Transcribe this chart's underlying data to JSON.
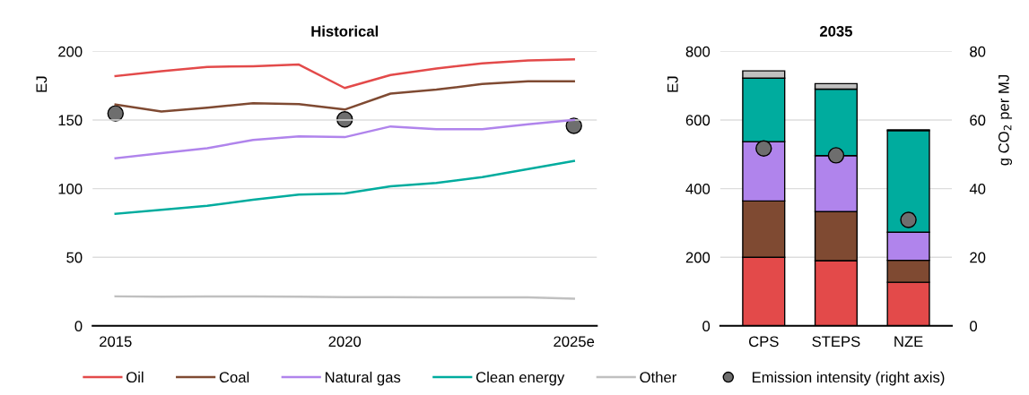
{
  "chart_data": [
    {
      "type": "line",
      "title": "Historical",
      "ylabel": "EJ",
      "x": [
        2015,
        2016,
        2017,
        2018,
        2019,
        2020,
        2021,
        2022,
        2023,
        2024,
        2025
      ],
      "xlim": [
        2014.5,
        2025.5
      ],
      "xticks": [
        2015,
        2020,
        {
          "value": 2025,
          "label": "2025e"
        }
      ],
      "ylim": [
        0,
        200
      ],
      "yticks": [
        0,
        50,
        100,
        150,
        200
      ],
      "y2lim": [
        0,
        80
      ],
      "grid": "y",
      "legend": "bottom",
      "tick_labels": [
        "x",
        "y"
      ],
      "series": [
        {
          "name": "Oil",
          "color": "#e34a4a",
          "values": [
            182,
            185.5,
            188.7,
            189.2,
            190.4,
            173.3,
            182.8,
            187.5,
            191.3,
            193.3,
            194.2
          ]
        },
        {
          "name": "Coal",
          "color": "#7f4a32",
          "values": [
            161.3,
            156.1,
            159,
            162.2,
            161.6,
            157.6,
            169.2,
            172.1,
            176.2,
            178.2,
            178.2
          ]
        },
        {
          "name": "Natural gas",
          "color": "#b084ec",
          "values": [
            122.1,
            125.9,
            129.4,
            135.5,
            138.1,
            137.5,
            145.3,
            143.3,
            143.3,
            146.8,
            150
          ]
        },
        {
          "name": "Clean energy",
          "color": "#00ac9e",
          "values": [
            81.7,
            84.6,
            87.5,
            91.9,
            95.6,
            96.5,
            101.7,
            104.1,
            108.4,
            114.2,
            120.1
          ]
        },
        {
          "name": "Other",
          "color": "#c0c0c0",
          "values": [
            21.5,
            21.3,
            21.5,
            21.5,
            21.2,
            21,
            20.9,
            20.8,
            20.7,
            20.7,
            19.8
          ]
        },
        {
          "name": "Emission intensity (right axis)",
          "type": "scatter",
          "axis": "y2",
          "marker": "circle",
          "color": "#6e6e6e",
          "x": [
            2015,
            2020,
            2025
          ],
          "values": [
            61.9,
            60.2,
            58.3
          ]
        }
      ]
    },
    {
      "type": "bar",
      "stacked": true,
      "title": "2035",
      "ylabel": "EJ",
      "y2label": "g CO$_{2}$ per MJ",
      "categories": [
        "CPS",
        "STEPS",
        "NZE"
      ],
      "ylim": [
        0,
        800
      ],
      "yticks": [
        0,
        200,
        400,
        600,
        800
      ],
      "y2lim": [
        0,
        80
      ],
      "y2ticks": [
        0,
        20,
        40,
        60,
        80
      ],
      "grid": "y",
      "series": [
        {
          "name": "Oil",
          "color": "#e34a4a",
          "values": [
            200,
            190,
            127
          ]
        },
        {
          "name": "Coal",
          "color": "#7f4a32",
          "values": [
            164,
            143,
            64
          ]
        },
        {
          "name": "Natural gas",
          "color": "#b084ec",
          "values": [
            173,
            163,
            82
          ]
        },
        {
          "name": "Clean energy",
          "color": "#00ac9e",
          "values": [
            185,
            194,
            296
          ]
        },
        {
          "name": "Other",
          "color": "#c0c0c0",
          "values": [
            21,
            16,
            2
          ]
        },
        {
          "name": "Emission intensity (right axis)",
          "type": "scatter",
          "axis": "y2",
          "marker": "circle",
          "color": "#6e6e6e",
          "x": [
            "CPS",
            "STEPS",
            "NZE"
          ],
          "values": [
            51.7,
            49.7,
            30.9
          ]
        }
      ]
    }
  ]
}
